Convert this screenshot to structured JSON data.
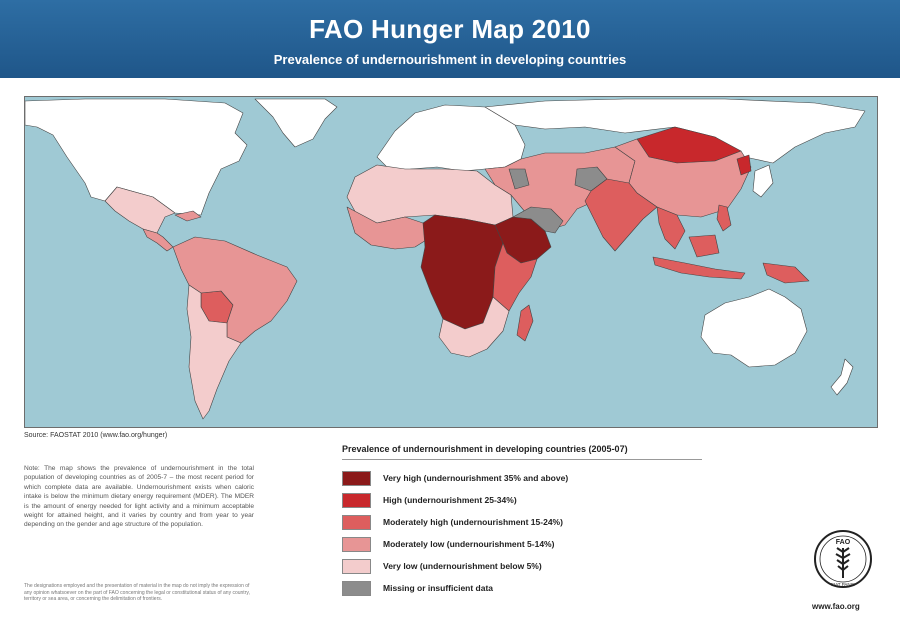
{
  "header": {
    "title": "FAO Hunger Map 2010",
    "subtitle": "Prevalence of undernourishment in developing countries"
  },
  "colors": {
    "ocean": "#9fc9d4",
    "very_high": "#8b1a1a",
    "high": "#c8282c",
    "moderately_high": "#dd5e5e",
    "moderately_low": "#e79595",
    "very_low": "#f3cccc",
    "missing": "#8c8c8c",
    "developed": "#ffffff",
    "header": "#2566a0"
  },
  "map": {
    "regions": [
      {
        "name": "North America",
        "category": "developed"
      },
      {
        "name": "Greenland",
        "category": "developed"
      },
      {
        "name": "Mexico",
        "category": "very_low"
      },
      {
        "name": "Central America",
        "category": "moderately_low"
      },
      {
        "name": "Brazil",
        "category": "moderately_low"
      },
      {
        "name": "Bolivia",
        "category": "moderately_high"
      },
      {
        "name": "Argentina",
        "category": "very_low"
      },
      {
        "name": "Europe",
        "category": "developed"
      },
      {
        "name": "Russia",
        "category": "developed"
      },
      {
        "name": "North Africa",
        "category": "very_low"
      },
      {
        "name": "Central Africa",
        "category": "very_high"
      },
      {
        "name": "Ethiopia",
        "category": "very_high"
      },
      {
        "name": "Southern Africa",
        "category": "very_low"
      },
      {
        "name": "Madagascar",
        "category": "moderately_high"
      },
      {
        "name": "Middle East",
        "category": "moderately_low"
      },
      {
        "name": "Afghanistan",
        "category": "missing"
      },
      {
        "name": "India",
        "category": "moderately_high"
      },
      {
        "name": "China",
        "category": "moderately_low"
      },
      {
        "name": "Mongolia",
        "category": "high"
      },
      {
        "name": "Indonesia",
        "category": "moderately_high"
      },
      {
        "name": "Australia",
        "category": "developed"
      }
    ]
  },
  "source": "Source: FAOSTAT 2010 (www.fao.org/hunger)",
  "note": "Note: The map shows the prevalence of undernourishment in the total population of developing countries as of 2005-7 – the most recent period for which complete data are available. Undernourishment exists when caloric intake is below the minimum dietary energy requirement (MDER). The MDER is the amount of energy needed for light activity and a minimum acceptable weight for attained height, and it varies by country and from year to year depending on the gender and age structure of the population.",
  "disclaimer": "The designations employed and the presentation of material in the map do not imply the expression of any opinion whatsoever on the part of FAO concerning the legal or constitutional status of any country, territory or sea area, or concerning the delimitation of frontiers.",
  "legend": {
    "title": "Prevalence of undernourishment in developing countries (2005-07)",
    "items": [
      {
        "label": "Very high (undernourishment 35% and above)",
        "color": "#8b1a1a"
      },
      {
        "label": "High (undernourishment 25-34%)",
        "color": "#c8282c"
      },
      {
        "label": "Moderately high (undernourishment 15-24%)",
        "color": "#dd5e5e"
      },
      {
        "label": "Moderately low (undernourishment 5-14%)",
        "color": "#e79595"
      },
      {
        "label": "Very low (undernourishment below 5%)",
        "color": "#f3cccc"
      },
      {
        "label": "Missing or insufficient data",
        "color": "#8c8c8c"
      }
    ]
  },
  "logo": {
    "letters": "FAO",
    "motto": "FIAT PANIS"
  },
  "website": "www.fao.org"
}
